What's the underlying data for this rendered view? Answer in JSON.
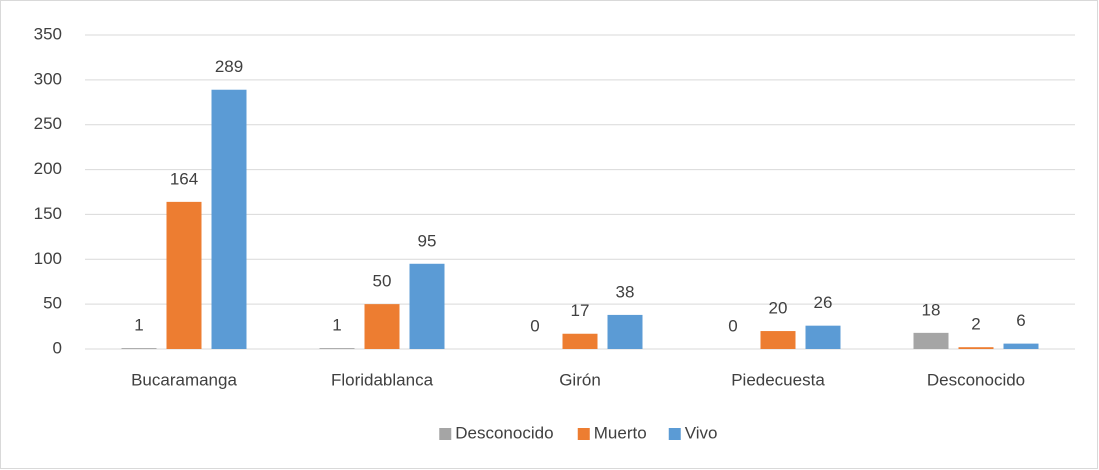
{
  "chart_data": {
    "type": "bar",
    "categories": [
      "Bucaramanga",
      "Floridablanca",
      "Girón",
      "Piedecuesta",
      "Desconocido"
    ],
    "series": [
      {
        "name": "Desconocido",
        "color": "#a5a5a5",
        "values": [
          1,
          1,
          0,
          0,
          18
        ]
      },
      {
        "name": "Muerto",
        "color": "#ed7d31",
        "values": [
          164,
          50,
          17,
          20,
          2
        ]
      },
      {
        "name": "Vivo",
        "color": "#5b9bd5",
        "values": [
          289,
          95,
          38,
          26,
          6
        ]
      }
    ],
    "ylim": [
      0,
      350
    ],
    "yticks": [
      0,
      50,
      100,
      150,
      200,
      250,
      300,
      350
    ],
    "grid": true,
    "legend": "bottom",
    "data_labels": true
  }
}
